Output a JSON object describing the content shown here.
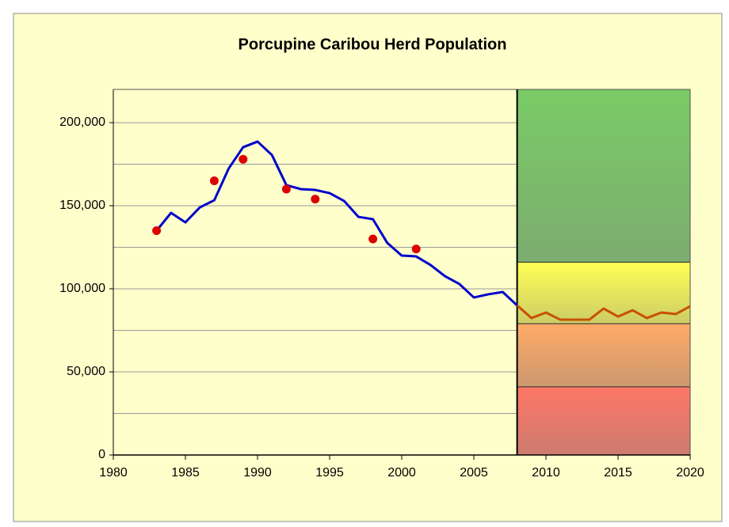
{
  "chart_data": {
    "type": "line",
    "title": "Porcupine Caribou Herd Population",
    "xlim": [
      1980,
      2020
    ],
    "xticks": [
      1980,
      1985,
      1990,
      1995,
      2000,
      2005,
      2010,
      2015,
      2020
    ],
    "ylim": [
      0,
      220000
    ],
    "yticks": [
      0,
      {
        "value": 50000,
        "label": "50,000"
      },
      {
        "value": 100000,
        "label": "100,000"
      },
      {
        "value": 150000,
        "label": "150,000"
      },
      {
        "value": 200000,
        "label": "200,000"
      }
    ],
    "yticks_minor": [
      25000,
      75000,
      125000,
      175000
    ],
    "grid": true,
    "bands": [
      {
        "x": [
          2008,
          2020
        ],
        "y": [
          116000,
          220000
        ],
        "color": "#7acb66"
      },
      {
        "x": [
          2008,
          2020
        ],
        "y": [
          79000,
          116000
        ],
        "color": "#ffff55"
      },
      {
        "x": [
          2008,
          2020
        ],
        "y": [
          41000,
          79000
        ],
        "color": "#ffaa66"
      },
      {
        "x": [
          2008,
          2020
        ],
        "y": [
          0,
          41000
        ],
        "color": "#ff7766"
      }
    ],
    "series": [
      {
        "style": "line",
        "color": "#0000cc",
        "x": [
          1983,
          1984,
          1985,
          1986,
          1987,
          1988,
          1989,
          1990,
          1991,
          1992,
          1993,
          1994,
          1995,
          1996,
          1997,
          1998,
          1999,
          2000,
          2001,
          2002,
          2003,
          2004,
          2005,
          2006,
          2007,
          2008
        ],
        "values": [
          135000,
          145700,
          140000,
          149000,
          153300,
          172400,
          185200,
          188600,
          180500,
          162400,
          160000,
          159500,
          157600,
          152900,
          143300,
          141900,
          127600,
          120000,
          119500,
          114300,
          107600,
          102900,
          94800,
          96700,
          98100,
          90000
        ]
      },
      {
        "style": "line",
        "color": "#c85000",
        "x": [
          2008,
          2009,
          2010,
          2011,
          2012,
          2013,
          2014,
          2015,
          2016,
          2017,
          2018,
          2019,
          2020
        ],
        "values": [
          90000,
          82400,
          85700,
          81400,
          81400,
          81400,
          88100,
          83300,
          87100,
          82400,
          85700,
          84800,
          89500
        ]
      },
      {
        "style": "markers",
        "color": "#dd0000",
        "x": [
          1983,
          1987,
          1989,
          1992,
          1994,
          1998,
          2001
        ],
        "values": [
          135000,
          165000,
          178000,
          160000,
          154000,
          130000,
          124000
        ]
      }
    ]
  }
}
